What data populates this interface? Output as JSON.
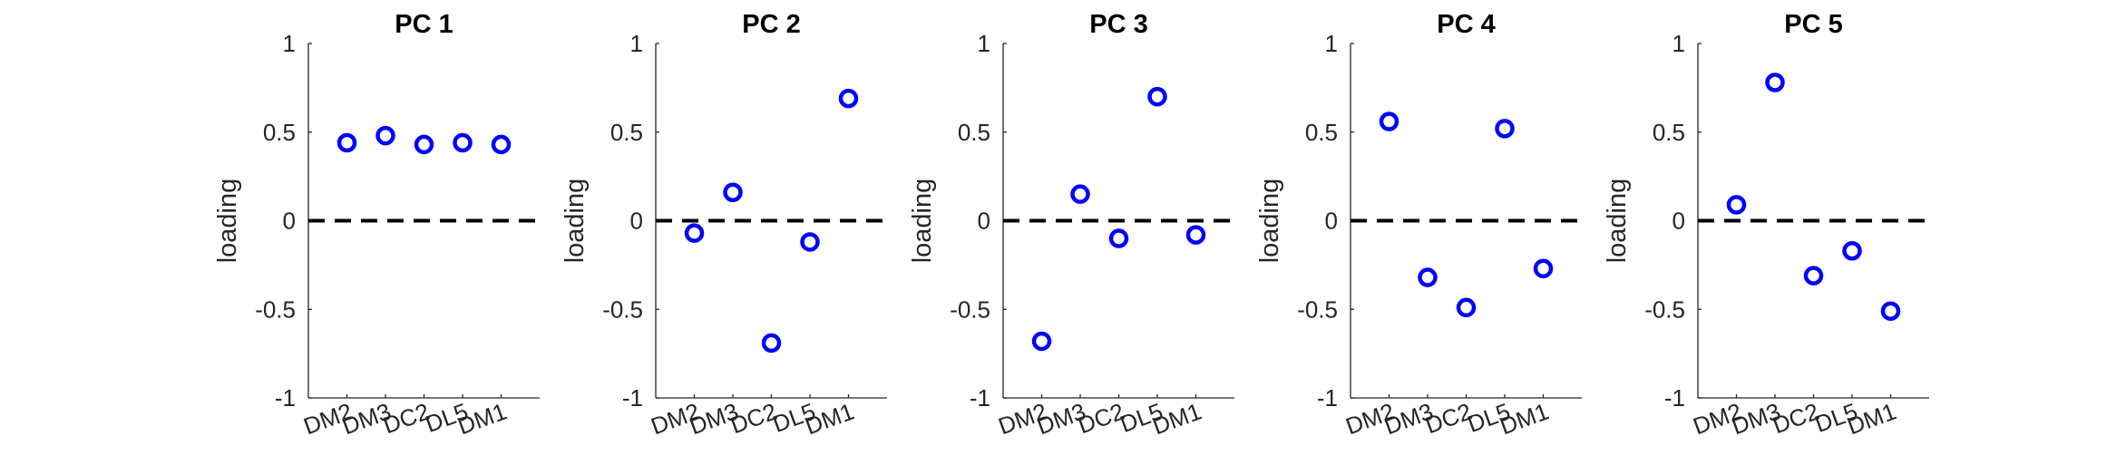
{
  "chart_data": [
    {
      "type": "scatter",
      "title": "PC 1",
      "ylabel": "loading",
      "categories": [
        "DM2",
        "DM3",
        "DC2",
        "DL5",
        "DM1"
      ],
      "values": [
        0.44,
        0.48,
        0.43,
        0.44,
        0.43
      ],
      "ylim": [
        -1,
        1
      ],
      "yticks": [
        "-1",
        "-0.5",
        "0",
        "0.5",
        "1"
      ],
      "reference_line": 0
    },
    {
      "type": "scatter",
      "title": "PC 2",
      "ylabel": "loading",
      "categories": [
        "DM2",
        "DM3",
        "DC2",
        "DL5",
        "DM1"
      ],
      "values": [
        -0.07,
        0.16,
        -0.69,
        -0.12,
        0.69
      ],
      "ylim": [
        -1,
        1
      ],
      "yticks": [
        "-1",
        "-0.5",
        "0",
        "0.5",
        "1"
      ],
      "reference_line": 0
    },
    {
      "type": "scatter",
      "title": "PC 3",
      "ylabel": "loading",
      "categories": [
        "DM2",
        "DM3",
        "DC2",
        "DL5",
        "DM1"
      ],
      "values": [
        -0.68,
        0.15,
        -0.1,
        0.7,
        -0.08
      ],
      "ylim": [
        -1,
        1
      ],
      "yticks": [
        "-1",
        "-0.5",
        "0",
        "0.5",
        "1"
      ],
      "reference_line": 0
    },
    {
      "type": "scatter",
      "title": "PC 4",
      "ylabel": "loading",
      "categories": [
        "DM2",
        "DM3",
        "DC2",
        "DL5",
        "DM1"
      ],
      "values": [
        0.56,
        -0.32,
        -0.49,
        0.52,
        -0.27
      ],
      "ylim": [
        -1,
        1
      ],
      "yticks": [
        "-1",
        "-0.5",
        "0",
        "0.5",
        "1"
      ],
      "reference_line": 0
    },
    {
      "type": "scatter",
      "title": "PC 5",
      "ylabel": "loading",
      "categories": [
        "DM2",
        "DM3",
        "DC2",
        "DL5",
        "DM1"
      ],
      "values": [
        0.09,
        0.78,
        -0.31,
        -0.17,
        -0.51
      ],
      "ylim": [
        -1,
        1
      ],
      "yticks": [
        "-1",
        "-0.5",
        "0",
        "0.5",
        "1"
      ],
      "reference_line": 0
    }
  ],
  "colors": {
    "marker": "#0000ff",
    "axis": "#262626",
    "reference_line": "#000000"
  }
}
